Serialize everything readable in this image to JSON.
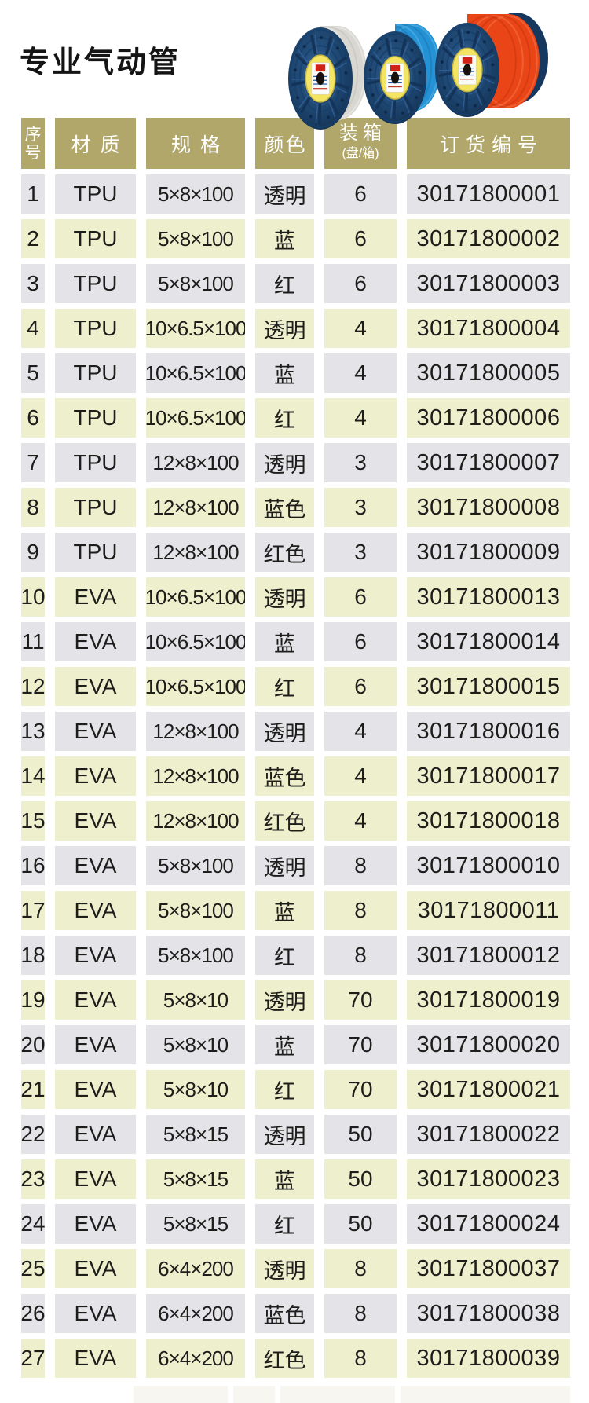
{
  "page": {
    "title": "专业气动管"
  },
  "hero": {
    "description": "three-spools-of-pneumatic-tubing",
    "flange_color": "#20497a",
    "hub_color": "#f3e463",
    "spools": [
      {
        "name": "transparent",
        "coil": "#d9d7d2",
        "stripe_light": "#efeeea",
        "stripe_dark": "#c2c0ba"
      },
      {
        "name": "blue",
        "coil": "#2492d4",
        "stripe_light": "#5cb6e8",
        "stripe_dark": "#1877b0"
      },
      {
        "name": "red",
        "coil": "#ea4517",
        "stripe_light": "#f37748",
        "stripe_dark": "#c5330e"
      }
    ]
  },
  "table": {
    "colors": {
      "header_bg": "#b1a76a",
      "header_text": "#ffffff",
      "row_gray_bg": "#e4e3e8",
      "row_green_bg": "#eef0cd",
      "text": "#1d1d1b"
    },
    "columns": [
      {
        "label_top": "序",
        "label_bottom": "号"
      },
      {
        "label": "材质"
      },
      {
        "label": "规格"
      },
      {
        "label": "颜色"
      },
      {
        "label": "装箱",
        "sub": "(盘/箱)"
      },
      {
        "label": "订货编号"
      }
    ],
    "rows": [
      {
        "no": "1",
        "material": "TPU",
        "spec": "5×8×100",
        "color": "透明",
        "pack": "6",
        "order": "30171800001",
        "shade": "gray"
      },
      {
        "no": "2",
        "material": "TPU",
        "spec": "5×8×100",
        "color": "蓝",
        "pack": "6",
        "order": "30171800002",
        "shade": "green"
      },
      {
        "no": "3",
        "material": "TPU",
        "spec": "5×8×100",
        "color": "红",
        "pack": "6",
        "order": "30171800003",
        "shade": "gray"
      },
      {
        "no": "4",
        "material": "TPU",
        "spec": "10×6.5×100",
        "color": "透明",
        "pack": "4",
        "order": "30171800004",
        "shade": "green"
      },
      {
        "no": "5",
        "material": "TPU",
        "spec": "10×6.5×100",
        "color": "蓝",
        "pack": "4",
        "order": "30171800005",
        "shade": "gray"
      },
      {
        "no": "6",
        "material": "TPU",
        "spec": "10×6.5×100",
        "color": "红",
        "pack": "4",
        "order": "30171800006",
        "shade": "green"
      },
      {
        "no": "7",
        "material": "TPU",
        "spec": "12×8×100",
        "color": "透明",
        "pack": "3",
        "order": "30171800007",
        "shade": "gray"
      },
      {
        "no": "8",
        "material": "TPU",
        "spec": "12×8×100",
        "color": "蓝色",
        "pack": "3",
        "order": "30171800008",
        "shade": "green"
      },
      {
        "no": "9",
        "material": "TPU",
        "spec": "12×8×100",
        "color": "红色",
        "pack": "3",
        "order": "30171800009",
        "shade": "gray"
      },
      {
        "no": "10",
        "material": "EVA",
        "spec": "10×6.5×100",
        "color": "透明",
        "pack": "6",
        "order": "30171800013",
        "shade": "green"
      },
      {
        "no": "11",
        "material": "EVA",
        "spec": "10×6.5×100",
        "color": "蓝",
        "pack": "6",
        "order": "30171800014",
        "shade": "gray"
      },
      {
        "no": "12",
        "material": "EVA",
        "spec": "10×6.5×100",
        "color": "红",
        "pack": "6",
        "order": "30171800015",
        "shade": "green"
      },
      {
        "no": "13",
        "material": "EVA",
        "spec": "12×8×100",
        "color": "透明",
        "pack": "4",
        "order": "30171800016",
        "shade": "gray"
      },
      {
        "no": "14",
        "material": "EVA",
        "spec": "12×8×100",
        "color": "蓝色",
        "pack": "4",
        "order": "30171800017",
        "shade": "green"
      },
      {
        "no": "15",
        "material": "EVA",
        "spec": "12×8×100",
        "color": "红色",
        "pack": "4",
        "order": "30171800018",
        "shade": "green"
      },
      {
        "no": "16",
        "material": "EVA",
        "spec": "5×8×100",
        "color": "透明",
        "pack": "8",
        "order": "30171800010",
        "shade": "gray"
      },
      {
        "no": "17",
        "material": "EVA",
        "spec": "5×8×100",
        "color": "蓝",
        "pack": "8",
        "order": "30171800011",
        "shade": "green"
      },
      {
        "no": "18",
        "material": "EVA",
        "spec": "5×8×100",
        "color": "红",
        "pack": "8",
        "order": "30171800012",
        "shade": "gray"
      },
      {
        "no": "19",
        "material": "EVA",
        "spec": "5×8×10",
        "color": "透明",
        "pack": "70",
        "order": "30171800019",
        "shade": "green"
      },
      {
        "no": "20",
        "material": "EVA",
        "spec": "5×8×10",
        "color": "蓝",
        "pack": "70",
        "order": "30171800020",
        "shade": "gray"
      },
      {
        "no": "21",
        "material": "EVA",
        "spec": "5×8×10",
        "color": "红",
        "pack": "70",
        "order": "30171800021",
        "shade": "green"
      },
      {
        "no": "22",
        "material": "EVA",
        "spec": "5×8×15",
        "color": "透明",
        "pack": "50",
        "order": "30171800022",
        "shade": "gray"
      },
      {
        "no": "23",
        "material": "EVA",
        "spec": "5×8×15",
        "color": "蓝",
        "pack": "50",
        "order": "30171800023",
        "shade": "green"
      },
      {
        "no": "24",
        "material": "EVA",
        "spec": "5×8×15",
        "color": "红",
        "pack": "50",
        "order": "30171800024",
        "shade": "gray"
      },
      {
        "no": "25",
        "material": "EVA",
        "spec": "6×4×200",
        "color": "透明",
        "pack": "8",
        "order": "30171800037",
        "shade": "green"
      },
      {
        "no": "26",
        "material": "EVA",
        "spec": "6×4×200",
        "color": "蓝色",
        "pack": "8",
        "order": "30171800038",
        "shade": "gray"
      },
      {
        "no": "27",
        "material": "EVA",
        "spec": "6×4×200",
        "color": "红色",
        "pack": "8",
        "order": "30171800039",
        "shade": "green"
      }
    ]
  }
}
